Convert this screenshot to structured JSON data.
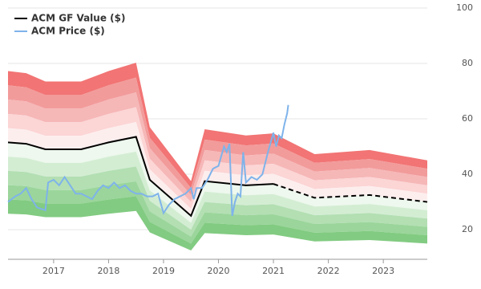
{
  "chart_data": {
    "type": "line",
    "xlim": [
      2016.17,
      2023.8
    ],
    "xticks": [
      2017,
      2018,
      2019,
      2020,
      2021,
      2022,
      2023
    ],
    "ylim": [
      9.3,
      100
    ],
    "yticks": [
      20,
      40,
      60,
      80,
      100
    ],
    "grid": true,
    "legend": "top-left",
    "bands": [
      {
        "lower": 1.4,
        "upper": 1.5,
        "color": "#f27474"
      },
      {
        "lower": 1.3,
        "upper": 1.4,
        "color": "#f29b9b"
      },
      {
        "lower": 1.2,
        "upper": 1.3,
        "color": "#f6b7b7"
      },
      {
        "lower": 1.1,
        "upper": 1.2,
        "color": "#fcd5d5"
      },
      {
        "lower": 1.0,
        "upper": 1.1,
        "color": "#fdeeee"
      },
      {
        "lower": 0.9,
        "upper": 1.0,
        "color": "#eef8ee"
      },
      {
        "lower": 0.8,
        "upper": 0.9,
        "color": "#d3edd3"
      },
      {
        "lower": 0.7,
        "upper": 0.8,
        "color": "#b3dfb3"
      },
      {
        "lower": 0.6,
        "upper": 0.7,
        "color": "#9bd59b"
      },
      {
        "lower": 0.5,
        "upper": 0.6,
        "color": "#82cb82"
      }
    ],
    "series": [
      {
        "name": "ACM GF Value ($)",
        "color": "#000000",
        "width": 2,
        "band_base": true,
        "dashed_from": 10,
        "x": [
          2016.17,
          2016.5,
          2016.85,
          2017.5,
          2018.0,
          2018.5,
          2018.75,
          2019.5,
          2019.75,
          2020.5,
          2021.0,
          2021.75,
          2022.75,
          2023.8
        ],
        "values": [
          51.5,
          51,
          49,
          49,
          51.5,
          53.5,
          38,
          25,
          37.5,
          36,
          36.5,
          31.5,
          32.5,
          30
        ]
      },
      {
        "name": "ACM Price ($)",
        "color": "#7eb3ea",
        "width": 2,
        "x": [
          2016.17,
          2016.3,
          2016.4,
          2016.5,
          2016.6,
          2016.7,
          2016.85,
          2016.9,
          2017.0,
          2017.1,
          2017.2,
          2017.3,
          2017.4,
          2017.5,
          2017.6,
          2017.7,
          2017.8,
          2017.9,
          2018.0,
          2018.1,
          2018.2,
          2018.3,
          2018.4,
          2018.5,
          2018.6,
          2018.7,
          2018.8,
          2018.9,
          2019.0,
          2019.1,
          2019.2,
          2019.3,
          2019.4,
          2019.5,
          2019.55,
          2019.6,
          2019.7,
          2019.8,
          2019.9,
          2020.0,
          2020.1,
          2020.15,
          2020.2,
          2020.25,
          2020.3,
          2020.35,
          2020.4,
          2020.45,
          2020.5,
          2020.6,
          2020.7,
          2020.8,
          2020.9,
          2021.0,
          2021.05,
          2021.1,
          2021.15,
          2021.2,
          2021.25,
          2021.27
        ],
        "values": [
          30,
          32,
          33,
          35,
          31,
          28,
          27,
          37,
          38,
          36,
          39,
          36,
          33,
          33,
          32,
          31,
          34,
          36,
          35,
          37,
          35,
          36,
          34,
          33,
          33,
          32,
          32,
          33,
          26,
          29,
          31,
          32,
          33,
          35,
          31,
          35,
          35,
          38,
          42,
          43,
          50,
          48,
          51,
          25,
          30,
          33,
          32,
          48,
          37,
          39,
          38,
          40,
          48,
          55,
          50,
          54,
          53,
          58,
          62,
          65
        ]
      }
    ]
  }
}
